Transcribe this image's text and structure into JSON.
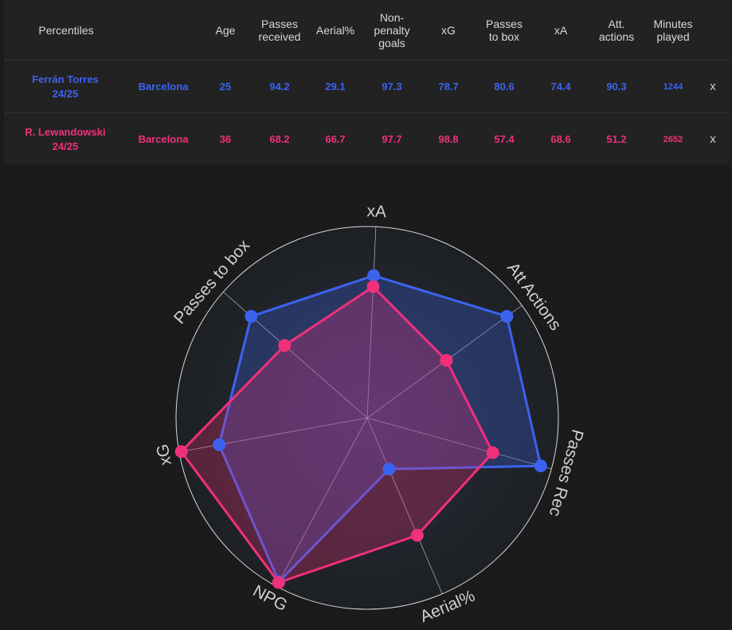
{
  "table": {
    "headers": [
      "Percentiles",
      "Age",
      "Passes received",
      "Aerial%",
      "Non-penalty goals",
      "xG",
      "Passes to box",
      "xA",
      "Att. actions",
      "Minutes played"
    ],
    "rows": [
      {
        "player": "Ferrán Torres",
        "season": "24/25",
        "team": "Barcelona",
        "values": [
          "25",
          "94.2",
          "29.1",
          "97.3",
          "78.7",
          "80.6",
          "74.4",
          "90.3",
          "1244"
        ],
        "remove": "x",
        "color": "#3c63f0"
      },
      {
        "player": "R. Lewandowski",
        "season": "24/25",
        "team": "Barcelona",
        "values": [
          "36",
          "68.2",
          "66.7",
          "97.7",
          "98.8",
          "57.4",
          "68.6",
          "51.2",
          "2652"
        ],
        "remove": "x",
        "color": "#f0307a"
      }
    ]
  },
  "chart_data": {
    "type": "radar",
    "axes": [
      "xA",
      "Att Actions",
      "Passes Rec",
      "Aerial%",
      "NPG",
      "xG",
      "Passes to box"
    ],
    "range": [
      0,
      100
    ],
    "series": [
      {
        "name": "Ferrán Torres",
        "color": "#3c63f0",
        "values": [
          74.4,
          90.3,
          94.2,
          29.1,
          97.3,
          78.7,
          80.6
        ]
      },
      {
        "name": "R. Lewandowski",
        "color": "#f0307a",
        "values": [
          68.6,
          51.2,
          68.2,
          66.7,
          97.7,
          98.8,
          57.4
        ]
      }
    ]
  }
}
